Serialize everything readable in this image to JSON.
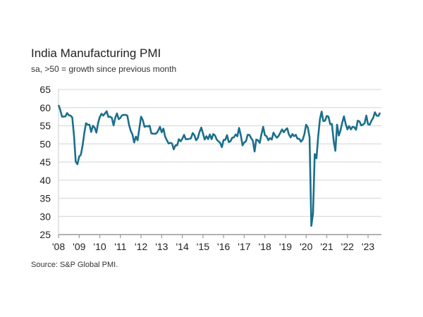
{
  "chart_data": {
    "type": "line",
    "title": "India Manufacturing PMI",
    "subtitle": "sa, >50 = growth since previous month",
    "source": "Source: S&P Global PMI.",
    "xlabel": "",
    "ylabel": "",
    "ylim": [
      25,
      65
    ],
    "yticks": [
      25,
      30,
      35,
      40,
      45,
      50,
      55,
      60,
      65
    ],
    "xticks": [
      "'08",
      "'09",
      "'10",
      "'11",
      "'12",
      "'13",
      "'14",
      "'15",
      "'16",
      "'17",
      "'18",
      "'19",
      "'20",
      "'21",
      "'22",
      "'23"
    ],
    "grid": true,
    "line_color": "#1b6f8c",
    "series": [
      {
        "start": "2008-01",
        "frequency": "monthly",
        "values": [
          60.7,
          59.4,
          57.5,
          57.5,
          57.6,
          58.5,
          57.9,
          57.8,
          57.3,
          52.2,
          45.1,
          44.4,
          46.5,
          47.0,
          49.5,
          53.0,
          55.7,
          55.3,
          55.3,
          53.3,
          55.0,
          54.5,
          53.1,
          55.7,
          57.4,
          58.3,
          57.8,
          58.4,
          59.0,
          57.4,
          57.5,
          57.2,
          55.1,
          57.2,
          58.4,
          56.8,
          57.2,
          57.9,
          58.0,
          58.0,
          57.8,
          55.3,
          53.6,
          52.6,
          50.4,
          52.0,
          51.0,
          54.2,
          57.5,
          56.6,
          54.7,
          54.9,
          54.8,
          55.0,
          52.9,
          52.8,
          52.8,
          52.9,
          53.7,
          54.7,
          53.2,
          54.2,
          52.0,
          51.0,
          50.1,
          50.3,
          50.1,
          48.5,
          49.6,
          49.6,
          51.3,
          50.7,
          51.4,
          52.5,
          51.3,
          51.3,
          51.4,
          51.5,
          53.0,
          52.4,
          51.0,
          51.6,
          53.3,
          54.5,
          52.9,
          51.2,
          52.1,
          51.3,
          52.6,
          51.3,
          52.7,
          52.3,
          51.2,
          50.7,
          50.3,
          49.1,
          51.1,
          51.1,
          52.4,
          50.5,
          50.7,
          51.7,
          51.8,
          52.6,
          52.1,
          54.4,
          52.3,
          49.6,
          50.4,
          50.7,
          52.5,
          52.5,
          51.6,
          50.9,
          47.9,
          51.2,
          51.0,
          50.3,
          52.6,
          54.7,
          52.4,
          52.1,
          51.0,
          51.6,
          51.2,
          53.1,
          52.3,
          51.7,
          52.2,
          53.1,
          54.0,
          53.2,
          53.9,
          54.3,
          52.6,
          51.8,
          52.7,
          52.1,
          52.5,
          51.4,
          51.4,
          50.6,
          51.2,
          52.7,
          55.3,
          54.5,
          51.8,
          27.4,
          30.8,
          47.2,
          46.0,
          52.0,
          56.8,
          58.9,
          56.3,
          56.4,
          57.7,
          57.5,
          55.4,
          55.5,
          50.8,
          48.1,
          55.3,
          52.3,
          53.7,
          55.9,
          57.6,
          55.5,
          54.0,
          54.9,
          54.0,
          54.7,
          54.6,
          53.9,
          56.4,
          56.2,
          55.1,
          55.3,
          55.7,
          57.8,
          55.4,
          55.3,
          56.4,
          57.2,
          58.7,
          57.8,
          57.7,
          58.6
        ]
      }
    ]
  }
}
